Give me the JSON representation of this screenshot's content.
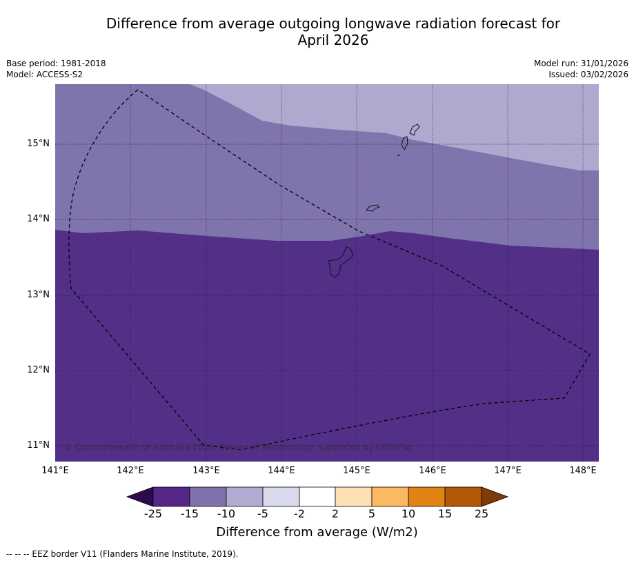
{
  "title_line1": "Difference from average outgoing longwave radiation forecast for",
  "title_line2": "April 2026",
  "meta_left": {
    "base_period": "Base period: 1981-2018",
    "model": "Model: ACCESS-S2"
  },
  "meta_right": {
    "model_run": "Model run: 31/01/2026",
    "issued": "Issued: 03/02/2026"
  },
  "map": {
    "lon_labels": [
      "141°E",
      "142°E",
      "143°E",
      "144°E",
      "145°E",
      "146°E",
      "147°E",
      "148°E"
    ],
    "lat_labels": [
      "15°N",
      "14°N",
      "13°N",
      "12°N",
      "11°N"
    ],
    "copyright": "© Commonwealth of Australia 2026, Bureau of Meteorology, supported by COSPPac",
    "colors": {
      "lt_minus25": "#523088",
      "m15_m10": "#8074ac",
      "m10_m5": "#afa9d0"
    }
  },
  "colorbar": {
    "labels": [
      "-25",
      "-15",
      "-10",
      "-5",
      "-2",
      "2",
      "5",
      "10",
      "15",
      "25"
    ],
    "colors": [
      "#2d0a4e",
      "#542788",
      "#8073ac",
      "#b2abd2",
      "#d8daeb",
      "#ffffff",
      "#fee0b6",
      "#fdb863",
      "#e08214",
      "#b35806",
      "#7f3b08"
    ],
    "title": "Difference from average (W/m2)"
  },
  "footer": "--  --  -- EEZ border V11 (Flanders Marine Institute, 2019)."
}
